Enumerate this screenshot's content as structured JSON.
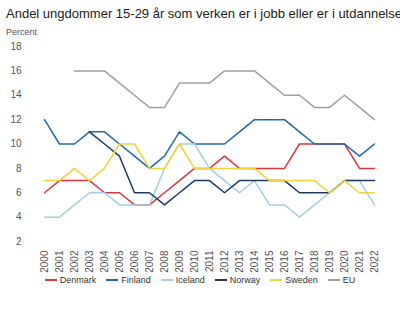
{
  "chart_data": {
    "type": "line",
    "title": "Andel ungdommer 15-29 år som verken er i jobb eller er i utdannelse",
    "y_label": "Percent",
    "categories": [
      "2000",
      "2001",
      "2002",
      "2003",
      "2004",
      "2005",
      "2006",
      "2007",
      "2008",
      "2009",
      "2010",
      "2011",
      "2012",
      "2013",
      "2014",
      "2015",
      "2016",
      "2017",
      "2018",
      "2019",
      "2020",
      "2021",
      "2022"
    ],
    "series": [
      {
        "name": "Denmark",
        "color": "#d9383a",
        "values": [
          6,
          7,
          7,
          7,
          6,
          6,
          5,
          5,
          6,
          7,
          8,
          8,
          9,
          8,
          8,
          8,
          8,
          10,
          10,
          10,
          10,
          8,
          8
        ]
      },
      {
        "name": "Finland",
        "color": "#1f6aa5",
        "values": [
          12,
          10,
          10,
          11,
          11,
          10,
          9,
          8,
          9,
          11,
          10,
          10,
          10,
          11,
          12,
          12,
          12,
          11,
          10,
          10,
          10,
          9,
          10
        ]
      },
      {
        "name": "Iceland",
        "color": "#a6cee3",
        "values": [
          4,
          4,
          5,
          6,
          6,
          5,
          5,
          5,
          8,
          10,
          10,
          8,
          7,
          6,
          7,
          5,
          5,
          4,
          5,
          6,
          7,
          7,
          5
        ]
      },
      {
        "name": "Norway",
        "color": "#1d3a5f",
        "values": [
          null,
          null,
          null,
          11,
          10,
          9,
          6,
          6,
          5,
          6,
          7,
          7,
          6,
          7,
          7,
          7,
          7,
          6,
          6,
          6,
          7,
          7,
          7
        ]
      },
      {
        "name": "Sweden",
        "color": "#f2d23c",
        "values": [
          7,
          7,
          8,
          7,
          8,
          10,
          10,
          8,
          8,
          10,
          8,
          8,
          8,
          8,
          8,
          7,
          7,
          7,
          7,
          6,
          7,
          6,
          6
        ]
      },
      {
        "name": "EU",
        "color": "#a0a0a0",
        "values": [
          null,
          null,
          16,
          16,
          16,
          15,
          14,
          13,
          13,
          15,
          15,
          15,
          16,
          16,
          16,
          15,
          14,
          14,
          13,
          13,
          14,
          13,
          12
        ]
      }
    ],
    "ylim": [
      2,
      18
    ],
    "yticks": [
      2,
      4,
      6,
      8,
      10,
      12,
      14,
      16,
      18
    ],
    "grid": false,
    "legend": "bottom"
  }
}
